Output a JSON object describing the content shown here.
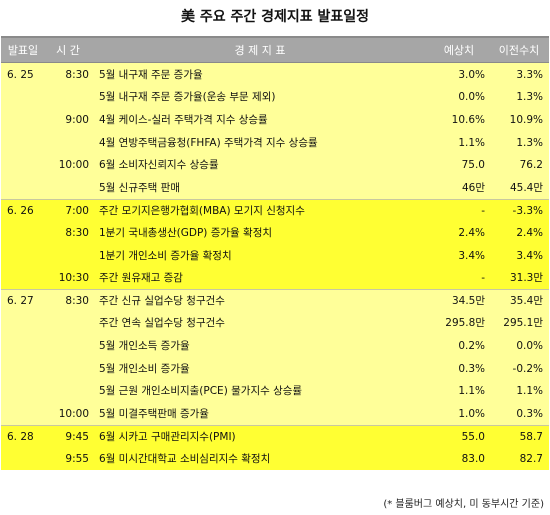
{
  "title": "美 주요 주간 경제지표 발표일정",
  "header": {
    "date": "발표일",
    "time": "시 간",
    "indicator": "경 제 지 표",
    "forecast": "예상치",
    "previous": "이전수치"
  },
  "rows": [
    {
      "date": "6. 25",
      "time": "8:30",
      "indicator": "5월 내구재 주문 증가율",
      "forecast": "3.0%",
      "previous": "3.3%",
      "group": 0
    },
    {
      "date": "",
      "time": "",
      "indicator": "5월 내구재 주문 증가율(운송 부문 제외)",
      "forecast": "0.0%",
      "previous": "1.3%",
      "group": 0
    },
    {
      "date": "",
      "time": "9:00",
      "indicator": "4월 케이스-실러 주택가격 지수 상승률",
      "forecast": "10.6%",
      "previous": "10.9%",
      "group": 0
    },
    {
      "date": "",
      "time": "",
      "indicator": "4월 연방주택금융청(FHFA) 주택가격 지수 상승률",
      "forecast": "1.1%",
      "previous": "1.3%",
      "group": 0
    },
    {
      "date": "",
      "time": "10:00",
      "indicator": "6월 소비자신뢰지수 상승률",
      "forecast": "75.0",
      "previous": "76.2",
      "group": 0
    },
    {
      "date": "",
      "time": "",
      "indicator": "5월 신규주택 판매",
      "forecast": "46만",
      "previous": "45.4만",
      "group": 0
    },
    {
      "date": "6. 26",
      "time": "7:00",
      "indicator": "주간 모기지은행가협회(MBA) 모기지 신청지수",
      "forecast": "-",
      "previous": "-3.3%",
      "group": 1
    },
    {
      "date": "",
      "time": "8:30",
      "indicator": "1분기 국내총생산(GDP) 증가율 확정치",
      "forecast": "2.4%",
      "previous": "2.4%",
      "group": 1
    },
    {
      "date": "",
      "time": "",
      "indicator": "1분기 개인소비 증가율 확정치",
      "forecast": "3.4%",
      "previous": "3.4%",
      "group": 1
    },
    {
      "date": "",
      "time": "10:30",
      "indicator": "주간 원유재고 증감",
      "forecast": "-",
      "previous": "31.3만",
      "group": 1
    },
    {
      "date": "6. 27",
      "time": "8:30",
      "indicator": "주간 신규 실업수당 청구건수",
      "forecast": "34.5만",
      "previous": "35.4만",
      "group": 2
    },
    {
      "date": "",
      "time": "",
      "indicator": "주간 연속 실업수당 청구건수",
      "forecast": "295.8만",
      "previous": "295.1만",
      "group": 2
    },
    {
      "date": "",
      "time": "",
      "indicator": "5월 개인소득 증가율",
      "forecast": "0.2%",
      "previous": "0.0%",
      "group": 2
    },
    {
      "date": "",
      "time": "",
      "indicator": "5월 개인소비 증가율",
      "forecast": "0.3%",
      "previous": "-0.2%",
      "group": 2
    },
    {
      "date": "",
      "time": "",
      "indicator": "5월 근원 개인소비지출(PCE) 물가지수 상승률",
      "forecast": "1.1%",
      "previous": "1.1%",
      "group": 2
    },
    {
      "date": "",
      "time": "10:00",
      "indicator": "5월 미결주택판매 증가율",
      "forecast": "1.0%",
      "previous": "0.3%",
      "group": 2
    },
    {
      "date": "6. 28",
      "time": "9:45",
      "indicator": "6월 시카고 구매관리지수(PMI)",
      "forecast": "55.0",
      "previous": "58.7",
      "group": 3
    },
    {
      "date": "",
      "time": "9:55",
      "indicator": "6월 미시간대학교 소비심리지수 확정치",
      "forecast": "83.0",
      "previous": "82.7",
      "group": 3
    }
  ],
  "note": "(* 블룸버그 예상치, 미 동부시간 기준)",
  "colors": {
    "light_yellow": "#ffff99",
    "bright_yellow": "#ffff33",
    "header_gray": "#a6a6a6"
  }
}
